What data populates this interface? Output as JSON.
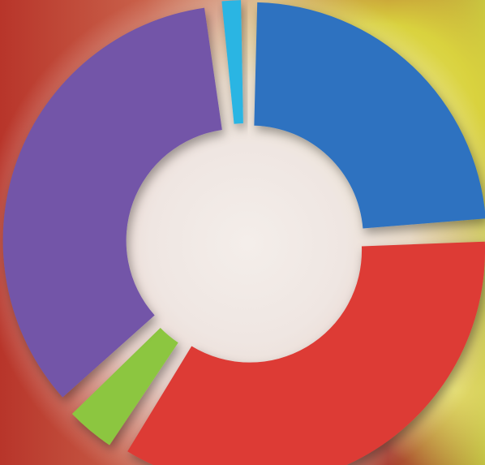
{
  "chart_data": {
    "type": "donut",
    "values": [
      2,
      24,
      35,
      4,
      35
    ],
    "colors": [
      "#2bb5e3",
      "#2f72c0",
      "#dd3a35",
      "#8cc63f",
      "#7354a8"
    ]
  }
}
